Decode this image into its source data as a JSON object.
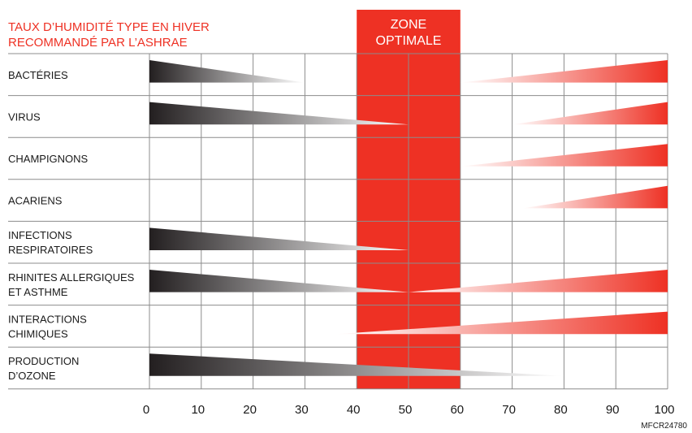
{
  "chart_data": {
    "type": "bar",
    "title_lines": [
      "TAUX D’HUMIDITÉ TYPE EN HIVER",
      "RECOMMANDÉ PAR L’ASHRAE"
    ],
    "zone_label_lines": [
      "ZONE",
      "OPTIMALE"
    ],
    "optimal_zone": [
      40,
      60
    ],
    "xlim": [
      0,
      100
    ],
    "x_ticks": [
      0,
      10,
      20,
      30,
      40,
      50,
      60,
      70,
      80,
      90,
      100
    ],
    "grid": true,
    "categories": [
      {
        "label_lines": [
          "BACTÉRIES"
        ],
        "low": {
          "start": 0,
          "end": 30
        },
        "high": {
          "start": 60,
          "end": 100
        }
      },
      {
        "label_lines": [
          "VIRUS"
        ],
        "low": {
          "start": 0,
          "end": 50
        },
        "high": {
          "start": 70,
          "end": 100
        }
      },
      {
        "label_lines": [
          "CHAMPIGNONS"
        ],
        "low": null,
        "high": {
          "start": 60,
          "end": 100
        }
      },
      {
        "label_lines": [
          "ACARIENS"
        ],
        "low": null,
        "high": {
          "start": 72,
          "end": 100
        }
      },
      {
        "label_lines": [
          "INFECTIONS",
          "RESPIRATOIRES"
        ],
        "low": {
          "start": 0,
          "end": 50
        },
        "high": null
      },
      {
        "label_lines": [
          "RHINITES ALLERGIQUES",
          "ET ASTHME"
        ],
        "low": {
          "start": 0,
          "end": 50
        },
        "high": {
          "start": 50,
          "end": 100
        }
      },
      {
        "label_lines": [
          "INTERACTIONS",
          "CHIMIQUES"
        ],
        "low": null,
        "high": {
          "start": 36,
          "end": 100
        }
      },
      {
        "label_lines": [
          "PRODUCTION",
          "D’OZONE"
        ],
        "low": {
          "start": 0,
          "end": 80
        },
        "high": null
      }
    ],
    "colors": {
      "low_dark": "#231f20",
      "low_light": "#ffffff",
      "high_dark": "#ee3124",
      "high_light": "#ffffff",
      "zone": "#ee3124",
      "grid": "#8c8c8c"
    }
  },
  "footer_code": "MFCR24780"
}
